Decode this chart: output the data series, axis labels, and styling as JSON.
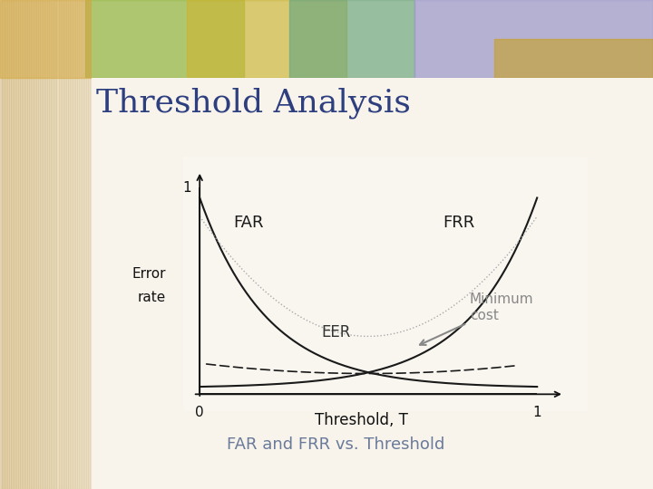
{
  "title": "Threshold Analysis",
  "subtitle": "FAR and FRR vs. Threshold",
  "bg_color": "#f8f4ec",
  "title_color": "#2e3f7f",
  "title_fontsize": 26,
  "subtitle_fontsize": 13,
  "subtitle_color": "#6a7a9a",
  "axis_label_color": "#111111",
  "curve_color": "#1a1a1a",
  "curve_dotted_color": "#aaaaaa",
  "flat_line_color": "#1a1a1a",
  "arrow_color": "#888888",
  "min_cost_color": "#888888",
  "xlabel": "Threshold, T",
  "ylabel_line1": "Error",
  "ylabel_line2": "rate",
  "label_FAR": "FAR",
  "label_FRR": "FRR",
  "label_EER": "EER",
  "label_min_cost": "Minimum\ncost",
  "label_0": "0",
  "label_1_x": "1",
  "label_1_y": "1"
}
